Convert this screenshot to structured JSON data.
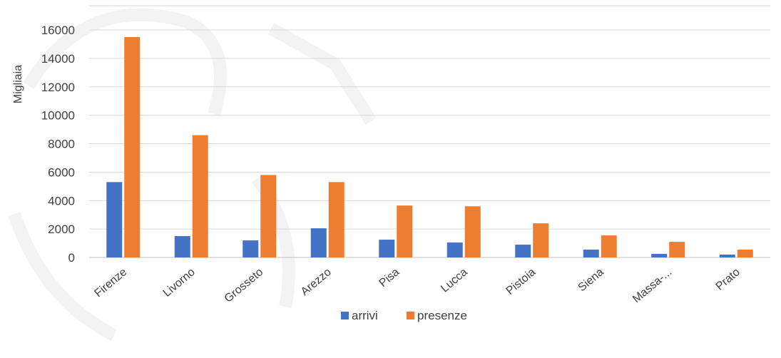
{
  "chart_data": {
    "type": "bar",
    "ylabel": "Migliaia",
    "xlabel": "",
    "ylim": [
      0,
      16000
    ],
    "yticks": [
      0,
      2000,
      4000,
      6000,
      8000,
      10000,
      12000,
      14000,
      16000
    ],
    "grid": true,
    "legend_position": "bottom",
    "categories": [
      "Firenze",
      "Livorno",
      "Grosseto",
      "Arezzo",
      "Pisa",
      "Lucca",
      "Pistoia",
      "Siena",
      "Massa-...",
      "Prato"
    ],
    "series": [
      {
        "name": "arrivi",
        "color": "#4472c4",
        "values": [
          5300,
          1500,
          1200,
          2050,
          1250,
          1050,
          900,
          550,
          250,
          200
        ]
      },
      {
        "name": "presenze",
        "color": "#ed7d31",
        "values": [
          15500,
          8600,
          5800,
          5300,
          3650,
          3600,
          2400,
          1550,
          1100,
          550
        ]
      }
    ]
  }
}
